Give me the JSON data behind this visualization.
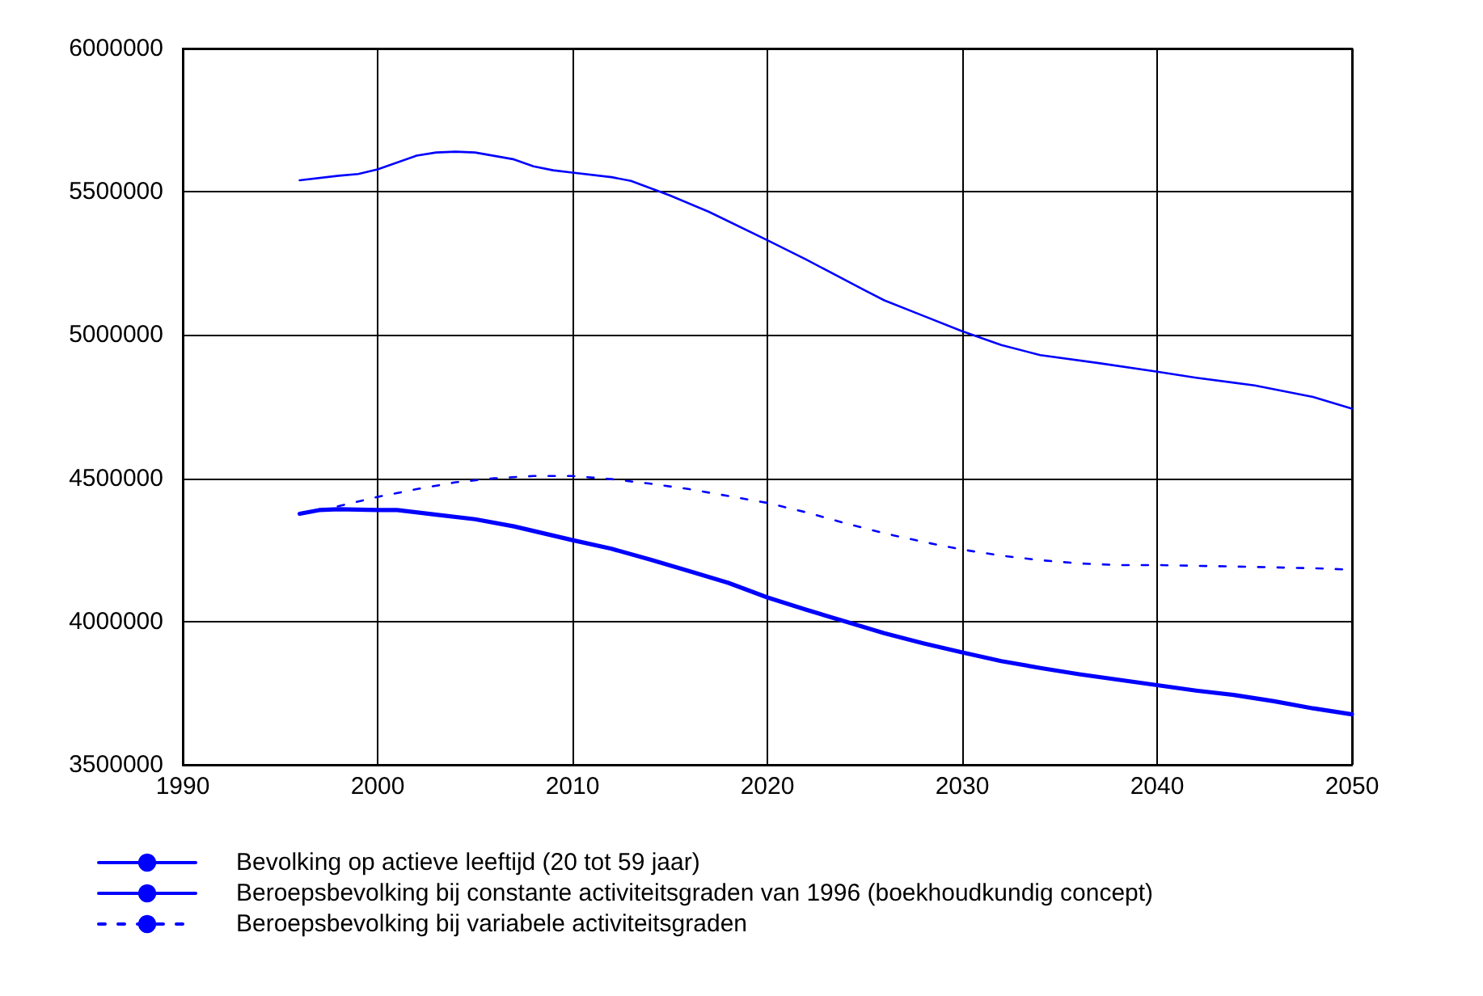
{
  "chart_data": {
    "type": "line",
    "xlim": [
      1990,
      2050
    ],
    "xticks": [
      1990,
      2000,
      2010,
      2020,
      2030,
      2040,
      2050
    ],
    "ylim": [
      3500000,
      6000000
    ],
    "yticks": [
      3500000,
      4000000,
      4500000,
      5000000,
      5500000,
      6000000
    ],
    "grid": true,
    "legend": "bottom",
    "marker": "none",
    "series": [
      {
        "name": "Bevolking op actieve leeftijd (20 tot 59 jaar)",
        "color": "#0000ff",
        "line_style": "solid",
        "x": [
          1996,
          1998,
          1999,
          2000,
          2002,
          2003,
          2004,
          2005,
          2007,
          2008,
          2009,
          2010,
          2012,
          2013,
          2015,
          2017,
          2020,
          2022,
          2025,
          2026,
          2028,
          2030,
          2032,
          2034,
          2037,
          2040,
          2042,
          2045,
          2048,
          2050
        ],
        "values": [
          5540000,
          5556000,
          5562000,
          5578000,
          5626000,
          5637000,
          5640000,
          5637000,
          5613000,
          5589000,
          5575000,
          5567000,
          5551000,
          5538000,
          5487000,
          5430000,
          5331000,
          5263000,
          5156000,
          5121000,
          5067000,
          5013000,
          4965000,
          4930000,
          4902000,
          4872000,
          4851000,
          4824000,
          4784000,
          4743000
        ]
      },
      {
        "name": "Beroepsbevolking bij constante activiteitsgraden van 1996 (boekhoudkundig concept)",
        "color": "#0000ff",
        "line_style": "solid",
        "x": [
          1996,
          1997,
          1998,
          2000,
          2001,
          2003,
          2005,
          2007,
          2010,
          2012,
          2014,
          2016,
          2018,
          2020,
          2022,
          2024,
          2026,
          2028,
          2030,
          2032,
          2034,
          2036,
          2038,
          2040,
          2042,
          2044,
          2046,
          2048,
          2050
        ],
        "values": [
          4376000,
          4389000,
          4392000,
          4389000,
          4389000,
          4373000,
          4357000,
          4332000,
          4284000,
          4254000,
          4216000,
          4176000,
          4135000,
          4084000,
          4041000,
          4000000,
          3959000,
          3924000,
          3892000,
          3862000,
          3838000,
          3816000,
          3797000,
          3778000,
          3759000,
          3743000,
          3722000,
          3697000,
          3676000
        ]
      },
      {
        "name": "Beroepsbevolking bij variabele activiteitsgraden",
        "color": "#0000ff",
        "line_style": "dashed",
        "x": [
          1996,
          1998,
          2000,
          2002,
          2004,
          2006,
          2008,
          2010,
          2012,
          2014,
          2016,
          2018,
          2020,
          2022,
          2024,
          2026,
          2028,
          2030,
          2032,
          2034,
          2036,
          2038,
          2040,
          2044,
          2048,
          2050
        ],
        "values": [
          4376000,
          4403000,
          4435000,
          4462000,
          4486000,
          4500000,
          4508000,
          4508000,
          4497000,
          4481000,
          4462000,
          4438000,
          4414000,
          4381000,
          4343000,
          4308000,
          4278000,
          4251000,
          4230000,
          4214000,
          4203000,
          4197000,
          4197000,
          4192000,
          4186000,
          4181000
        ]
      }
    ]
  }
}
